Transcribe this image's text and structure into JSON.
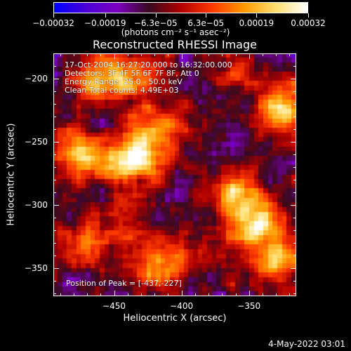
{
  "chart_data": {
    "type": "heatmap",
    "title": "Reconstructed RHESSI Image",
    "xlabel": "Heliocentric X (arcsec)",
    "ylabel": "Heliocentric Y (arcsec)",
    "xlim": [
      -495,
      -315
    ],
    "ylim": [
      -372,
      -180
    ],
    "xticks": [
      {
        "value": -450,
        "label": "−450"
      },
      {
        "value": -400,
        "label": "−400"
      },
      {
        "value": -350,
        "label": "−350"
      }
    ],
    "yticks": [
      {
        "value": -200,
        "label": "−200"
      },
      {
        "value": -250,
        "label": "−250"
      },
      {
        "value": -300,
        "label": "−300"
      },
      {
        "value": -350,
        "label": "−350"
      }
    ],
    "colorbar": {
      "range": [
        -0.00032,
        0.00032
      ],
      "ticks": [
        {
          "value": -0.00032,
          "label": "−0.00032"
        },
        {
          "value": -0.00019,
          "label": "−0.00019"
        },
        {
          "value": -6.3e-05,
          "label": "−6.3e−05"
        },
        {
          "value": 6.3e-05,
          "label": "6.3e−05"
        },
        {
          "value": 0.00019,
          "label": "0.00019"
        },
        {
          "value": 0.00032,
          "label": "0.00032"
        }
      ],
      "unit_label": "(photons cm⁻² s⁻¹ asec⁻²)",
      "colors": [
        "#0000ff",
        "#4b00d8",
        "#7f00c0",
        "#3a0a20",
        "#b00000",
        "#ff3a00",
        "#ff9a00",
        "#ffe070",
        "#ffffff"
      ]
    },
    "annotations": {
      "time": "17-Oct-2004 16:27:20.000 to 16:32:00.000",
      "detectors": "Detectors: 3F 4F 5F 6F 7F 8F, Att 0",
      "energy": "Energy Range: 25.0 - 50.0 keV",
      "method": "Clean     Total counts: 4.49E+03",
      "peak": "Position of Peak = [-437,-227]"
    },
    "sources": [
      {
        "x": -435,
        "y": -263,
        "amp": 1.0
      },
      {
        "x": -460,
        "y": -200,
        "amp": 0.75
      },
      {
        "x": -474,
        "y": -260,
        "amp": 0.85
      },
      {
        "x": -430,
        "y": -195,
        "amp": 0.6
      },
      {
        "x": -415,
        "y": -240,
        "amp": 0.55
      },
      {
        "x": -345,
        "y": -315,
        "amp": 0.85
      },
      {
        "x": -330,
        "y": -345,
        "amp": 0.7
      },
      {
        "x": -325,
        "y": -225,
        "amp": 0.8
      },
      {
        "x": -360,
        "y": -290,
        "amp": 0.6
      },
      {
        "x": -470,
        "y": -330,
        "amp": 0.55
      },
      {
        "x": -420,
        "y": -350,
        "amp": 0.65
      },
      {
        "x": -440,
        "y": -310,
        "amp": 0.35
      },
      {
        "x": -390,
        "y": -335,
        "amp": 0.3
      },
      {
        "x": -355,
        "y": -195,
        "amp": 0.3
      }
    ]
  },
  "footer": {
    "date": "4-May-2022 03:01"
  }
}
